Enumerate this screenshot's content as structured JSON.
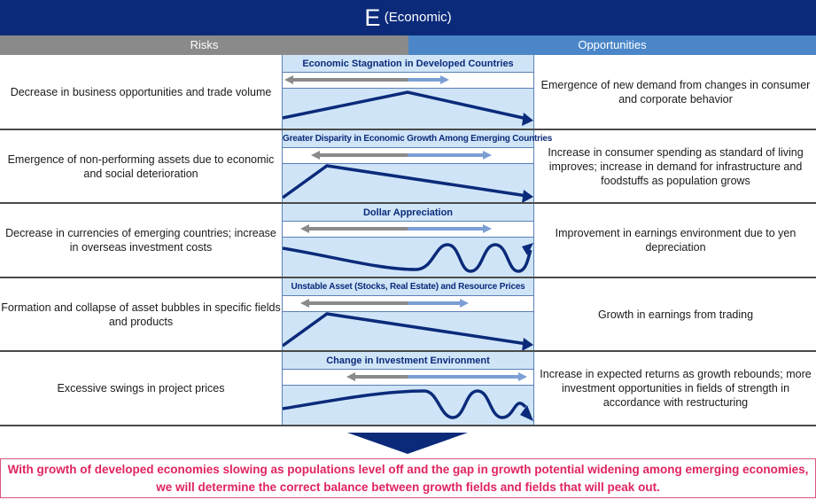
{
  "title": {
    "letter": "E",
    "label": "(Economic)"
  },
  "headers": {
    "risks": "Risks",
    "opportunities": "Opportunities"
  },
  "rows": [
    {
      "risk": "Decrease in business opportunities and trade volume",
      "theme": "Economic Stagnation in Developed Countries",
      "opportunity": "Emergence of new demand from changes in consumer and corporate behavior"
    },
    {
      "risk": "Emergence of non-performing assets due to economic and social deterioration",
      "theme": "Greater Disparity in Economic Growth Among Emerging Countries",
      "opportunity": "Increase in consumer spending as standard of living improves; increase in demand for infrastructure and foodstuffs as population grows"
    },
    {
      "risk": "Decrease in currencies of emerging countries; increase in overseas investment costs",
      "theme": "Dollar Appreciation",
      "opportunity": "Improvement in earnings environment due to yen depreciation"
    },
    {
      "risk": "Formation and collapse of asset bubbles in specific fields and products",
      "theme": "Unstable Asset (Stocks, Real Estate) and Resource Prices",
      "opportunity": "Growth in earnings from trading"
    },
    {
      "risk": "Excessive swings in project prices",
      "theme": "Change in Investment Environment",
      "opportunity": "Increase in expected returns as growth rebounds; more investment opportunities in fields of strength in accordance with restructuring"
    }
  ],
  "conclusion": "With growth of developed economies slowing as populations level off and the gap in growth potential widening among emerging economies, we will determine the correct balance between growth fields and fields that will peak out.",
  "colors": {
    "navy": "#0b2a7a",
    "risk_gray": "#8a8a8a",
    "opp_blue": "#4a86c8",
    "light_blue": "#cfe5f7",
    "conclusion_pink": "#e0245e"
  }
}
